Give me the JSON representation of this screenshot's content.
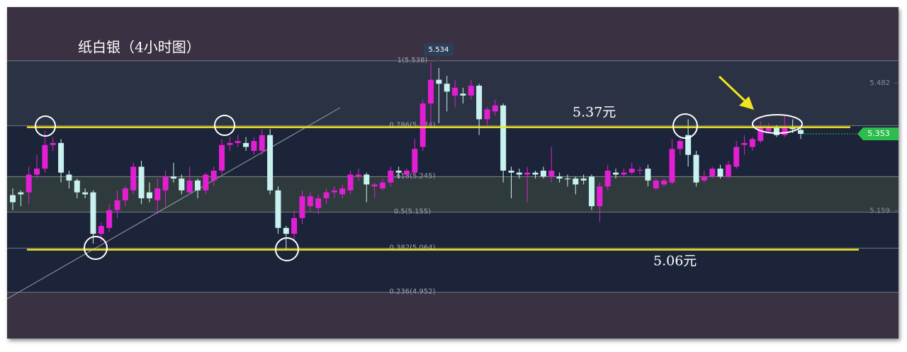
{
  "chart_data": {
    "type": "candlestick",
    "title": "纸白银（4小时图）",
    "ylim": [
      4.835,
      5.674
    ],
    "yticks": [
      5.482,
      5.159
    ],
    "up_color": "#e21fd2",
    "down_color": "#c9f1f0",
    "last_price": 5.353,
    "high_label": 5.534,
    "fib_levels": [
      {
        "value": 5.538,
        "label": "1(5.538)"
      },
      {
        "value": 5.374,
        "label": "0.786(5.374)"
      },
      {
        "value": 5.245,
        "label": "0.618(5.245)"
      },
      {
        "value": 5.155,
        "label": "0.5(5.155)"
      },
      {
        "value": 5.064,
        "label": "0.382(5.064)"
      },
      {
        "value": 4.952,
        "label": "0.236(4.952)"
      }
    ],
    "support_lines": [
      {
        "value": 5.37,
        "label": "5.37元"
      },
      {
        "value": 5.06,
        "label": "5.06元"
      }
    ],
    "open": [
      5.198,
      5.205,
      5.205,
      5.25,
      5.265,
      5.325,
      5.33,
      5.25,
      5.235,
      5.205,
      5.205,
      5.1,
      5.115,
      5.16,
      5.185,
      5.21,
      5.27,
      5.205,
      5.185,
      5.21,
      5.245,
      5.24,
      5.205,
      5.235,
      5.21,
      5.235,
      5.26,
      5.325,
      5.33,
      5.33,
      5.31,
      5.31,
      5.35,
      5.21,
      5.115,
      5.1,
      5.14,
      5.17,
      5.165,
      5.19,
      5.205,
      5.2,
      5.21,
      5.245,
      5.25,
      5.22,
      5.215,
      5.23,
      5.26,
      5.25,
      5.255,
      5.32,
      5.43,
      5.49,
      5.48,
      5.45,
      5.455,
      5.45,
      5.475,
      5.39,
      5.41,
      5.425,
      5.26,
      5.255,
      5.25,
      5.255,
      5.26,
      5.245,
      5.245,
      5.24,
      5.24,
      5.24,
      5.245,
      5.17,
      5.22,
      5.255,
      5.25,
      5.255,
      5.26,
      5.265,
      5.215,
      5.225,
      5.23,
      5.315,
      5.35,
      5.3,
      5.235,
      5.245,
      5.265,
      5.245,
      5.27,
      5.325,
      5.32,
      5.335,
      5.36,
      5.37,
      5.35,
      5.37,
      5.363
    ],
    "high": [
      5.215,
      5.21,
      5.27,
      5.3,
      5.36,
      5.345,
      5.34,
      5.26,
      5.24,
      5.215,
      5.21,
      5.13,
      5.175,
      5.21,
      5.22,
      5.28,
      5.285,
      5.23,
      5.24,
      5.26,
      5.28,
      5.25,
      5.27,
      5.24,
      5.255,
      5.27,
      5.34,
      5.345,
      5.35,
      5.345,
      5.345,
      5.365,
      5.365,
      5.22,
      5.12,
      5.16,
      5.21,
      5.205,
      5.2,
      5.215,
      5.22,
      5.225,
      5.26,
      5.265,
      5.255,
      5.23,
      5.24,
      5.27,
      5.27,
      5.265,
      5.34,
      5.44,
      5.534,
      5.52,
      5.5,
      5.49,
      5.47,
      5.49,
      5.48,
      5.42,
      5.44,
      5.43,
      5.27,
      5.265,
      5.27,
      5.26,
      5.27,
      5.32,
      5.255,
      5.25,
      5.245,
      5.25,
      5.25,
      5.23,
      5.275,
      5.265,
      5.265,
      5.28,
      5.27,
      5.275,
      5.24,
      5.24,
      5.34,
      5.34,
      5.39,
      5.31,
      5.26,
      5.27,
      5.275,
      5.285,
      5.335,
      5.35,
      5.345,
      5.385,
      5.38,
      5.375,
      5.4,
      5.39,
      5.37
    ],
    "low": [
      5.16,
      5.17,
      5.175,
      5.24,
      5.255,
      5.31,
      5.23,
      5.215,
      5.19,
      5.19,
      5.075,
      5.08,
      5.105,
      5.14,
      5.17,
      5.2,
      5.175,
      5.18,
      5.15,
      5.17,
      5.23,
      5.2,
      5.2,
      5.19,
      5.2,
      5.22,
      5.25,
      5.31,
      5.32,
      5.31,
      5.3,
      5.3,
      5.2,
      5.1,
      5.06,
      5.08,
      5.125,
      5.155,
      5.15,
      5.175,
      5.19,
      5.19,
      5.2,
      5.235,
      5.18,
      5.19,
      5.21,
      5.22,
      5.24,
      5.24,
      5.25,
      5.31,
      5.37,
      5.38,
      5.41,
      5.42,
      5.43,
      5.44,
      5.35,
      5.375,
      5.4,
      5.23,
      5.19,
      5.24,
      5.18,
      5.24,
      5.24,
      5.23,
      5.23,
      5.22,
      5.2,
      5.225,
      5.16,
      5.13,
      5.21,
      5.24,
      5.245,
      5.25,
      5.25,
      5.22,
      5.21,
      5.22,
      5.225,
      5.3,
      5.27,
      5.22,
      5.23,
      5.24,
      5.24,
      5.24,
      5.265,
      5.3,
      5.31,
      5.33,
      5.355,
      5.345,
      5.345,
      5.355,
      5.34
    ],
    "close": [
      5.18,
      5.2,
      5.25,
      5.265,
      5.325,
      5.33,
      5.255,
      5.235,
      5.205,
      5.2,
      5.1,
      5.12,
      5.16,
      5.185,
      5.215,
      5.27,
      5.19,
      5.19,
      5.215,
      5.245,
      5.24,
      5.21,
      5.235,
      5.21,
      5.25,
      5.26,
      5.325,
      5.33,
      5.335,
      5.32,
      5.335,
      5.35,
      5.21,
      5.115,
      5.1,
      5.14,
      5.195,
      5.195,
      5.19,
      5.205,
      5.21,
      5.215,
      5.25,
      5.25,
      5.225,
      5.225,
      5.23,
      5.26,
      5.255,
      5.26,
      5.315,
      5.43,
      5.49,
      5.48,
      5.46,
      5.47,
      5.45,
      5.475,
      5.39,
      5.415,
      5.425,
      5.26,
      5.255,
      5.25,
      5.255,
      5.25,
      5.245,
      5.26,
      5.24,
      5.238,
      5.225,
      5.235,
      5.17,
      5.22,
      5.26,
      5.25,
      5.255,
      5.265,
      5.262,
      5.235,
      5.235,
      5.235,
      5.315,
      5.335,
      5.3,
      5.23,
      5.245,
      5.265,
      5.245,
      5.275,
      5.32,
      5.33,
      5.34,
      5.37,
      5.37,
      5.35,
      5.37,
      5.365,
      5.353
    ]
  }
}
